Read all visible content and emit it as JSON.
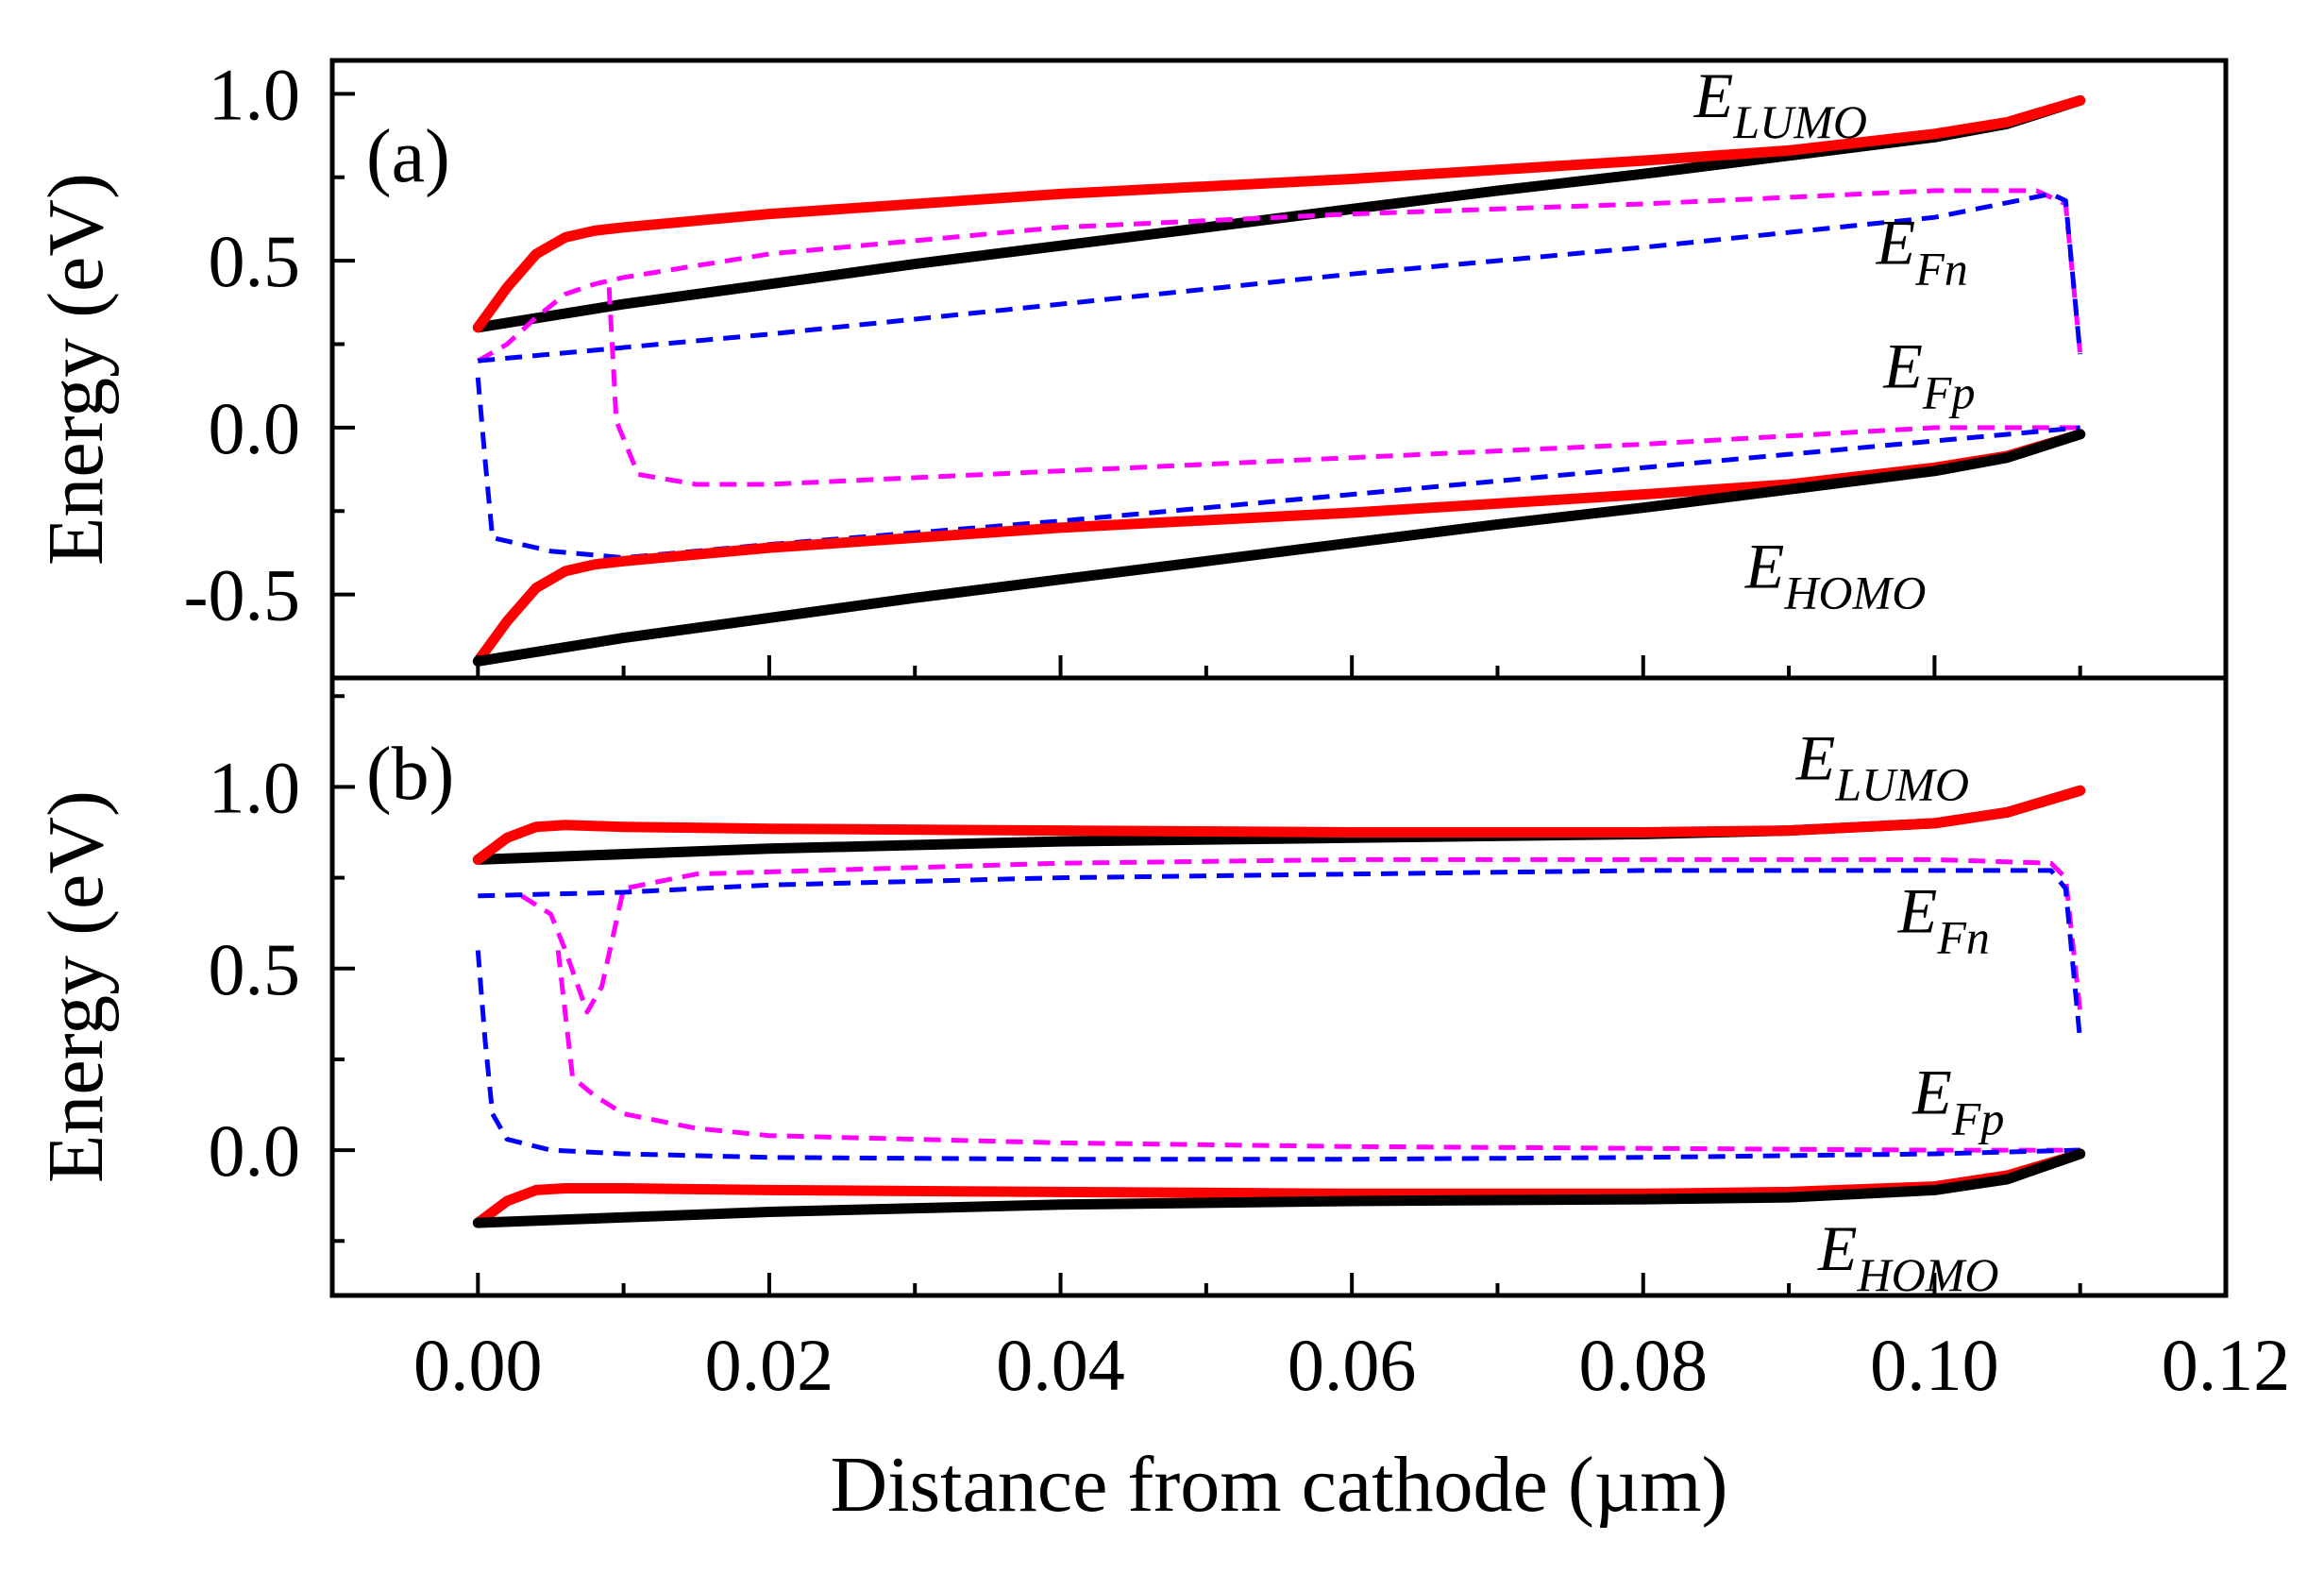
{
  "chart_data": [
    {
      "type": "line",
      "panel_label": "(a)",
      "xlabel": "Distance from cathode (µm)",
      "ylabel": "Energy (eV)",
      "xlim": [
        -0.01,
        0.12
      ],
      "ylim": [
        -0.75,
        1.1
      ],
      "xticks": [
        0.0,
        0.02,
        0.04,
        0.06,
        0.08,
        0.1,
        0.12
      ],
      "xtick_labels": [
        "0.00",
        "0.02",
        "0.04",
        "0.06",
        "0.08",
        "0.10",
        "0.12"
      ],
      "yticks": [
        -0.5,
        0.0,
        0.5,
        1.0
      ],
      "ytick_labels": [
        "-0.5",
        "0.0",
        "0.5",
        "1.0"
      ],
      "annotations": [
        {
          "main": "E",
          "sub": "LUMO",
          "x": 0.0835,
          "y": 0.93
        },
        {
          "main": "E",
          "sub": "Fn",
          "x": 0.096,
          "y": 0.49
        },
        {
          "main": "E",
          "sub": "Fp",
          "x": 0.0965,
          "y": 0.12
        },
        {
          "main": "E",
          "sub": "HOMO",
          "x": 0.087,
          "y": -0.48
        }
      ],
      "series": [
        {
          "name": "LUMO black",
          "color": "#000000",
          "width": 11,
          "dash": "",
          "x": [
            0,
            0.01,
            0.02,
            0.03,
            0.04,
            0.05,
            0.06,
            0.07,
            0.08,
            0.09,
            0.1,
            0.105,
            0.11
          ],
          "y": [
            0.3,
            0.37,
            0.43,
            0.49,
            0.545,
            0.6,
            0.655,
            0.71,
            0.76,
            0.815,
            0.87,
            0.91,
            0.98
          ]
        },
        {
          "name": "LUMO red",
          "color": "#ff0000",
          "width": 11,
          "dash": "",
          "x": [
            0,
            0.002,
            0.004,
            0.006,
            0.008,
            0.01,
            0.02,
            0.04,
            0.06,
            0.08,
            0.09,
            0.1,
            0.105,
            0.11
          ],
          "y": [
            0.3,
            0.42,
            0.52,
            0.57,
            0.59,
            0.6,
            0.64,
            0.7,
            0.745,
            0.8,
            0.83,
            0.88,
            0.915,
            0.98
          ]
        },
        {
          "name": "Fn magenta",
          "color": "#ff00ff",
          "width": 5,
          "dash": "18,11",
          "x": [
            0,
            0.002,
            0.004,
            0.006,
            0.008,
            0.01,
            0.02,
            0.04,
            0.06,
            0.08,
            0.1,
            0.107,
            0.109,
            0.11
          ],
          "y": [
            0.2,
            0.25,
            0.33,
            0.4,
            0.43,
            0.45,
            0.52,
            0.6,
            0.64,
            0.67,
            0.71,
            0.71,
            0.67,
            0.22
          ]
        },
        {
          "name": "Fn blue",
          "color": "#0000ff",
          "width": 5,
          "dash": "18,11",
          "x": [
            0,
            0.02,
            0.04,
            0.06,
            0.08,
            0.1,
            0.108,
            0.109,
            0.11
          ],
          "y": [
            0.2,
            0.28,
            0.37,
            0.46,
            0.54,
            0.63,
            0.7,
            0.68,
            0.22
          ]
        },
        {
          "name": "Fp magenta",
          "color": "#ff00ff",
          "width": 5,
          "dash": "18,11",
          "x": [
            0.009,
            0.0095,
            0.011,
            0.015,
            0.02,
            0.04,
            0.06,
            0.08,
            0.1,
            0.11
          ],
          "y": [
            0.42,
            0.02,
            -0.14,
            -0.17,
            -0.17,
            -0.13,
            -0.09,
            -0.05,
            0.0,
            0.0
          ]
        },
        {
          "name": "Fp blue",
          "color": "#0000ff",
          "width": 5,
          "dash": "18,11",
          "x": [
            0,
            0.0005,
            0.001,
            0.005,
            0.01,
            0.02,
            0.04,
            0.06,
            0.08,
            0.1,
            0.11
          ],
          "y": [
            0.15,
            -0.1,
            -0.33,
            -0.37,
            -0.39,
            -0.35,
            -0.28,
            -0.2,
            -0.12,
            -0.04,
            0.0
          ]
        },
        {
          "name": "HOMO red",
          "color": "#ff0000",
          "width": 11,
          "dash": "",
          "x": [
            0,
            0.002,
            0.004,
            0.006,
            0.008,
            0.01,
            0.02,
            0.04,
            0.06,
            0.08,
            0.09,
            0.1,
            0.105,
            0.11
          ],
          "y": [
            -0.7,
            -0.58,
            -0.48,
            -0.43,
            -0.41,
            -0.4,
            -0.36,
            -0.3,
            -0.255,
            -0.2,
            -0.17,
            -0.12,
            -0.085,
            -0.02
          ]
        },
        {
          "name": "HOMO black",
          "color": "#000000",
          "width": 11,
          "dash": "",
          "x": [
            0,
            0.01,
            0.02,
            0.03,
            0.04,
            0.05,
            0.06,
            0.07,
            0.08,
            0.09,
            0.1,
            0.105,
            0.11
          ],
          "y": [
            -0.7,
            -0.63,
            -0.57,
            -0.51,
            -0.455,
            -0.4,
            -0.345,
            -0.29,
            -0.24,
            -0.185,
            -0.13,
            -0.09,
            -0.02
          ]
        }
      ]
    },
    {
      "type": "line",
      "panel_label": "(b)",
      "xlabel": "Distance from cathode (µm)",
      "ylabel": "Energy (eV)",
      "xlim": [
        -0.01,
        0.12
      ],
      "ylim": [
        -0.4,
        1.3
      ],
      "xticks": [
        0.0,
        0.02,
        0.04,
        0.06,
        0.08,
        0.1,
        0.12
      ],
      "xtick_labels": [
        "0.00",
        "0.02",
        "0.04",
        "0.06",
        "0.08",
        "0.10",
        "0.12"
      ],
      "yticks": [
        0.0,
        0.5,
        1.0
      ],
      "ytick_labels": [
        "0.0",
        "0.5",
        "1.0"
      ],
      "annotations": [
        {
          "main": "E",
          "sub": "LUMO",
          "x": 0.0905,
          "y": 1.02
        },
        {
          "main": "E",
          "sub": "Fn",
          "x": 0.0975,
          "y": 0.6
        },
        {
          "main": "E",
          "sub": "Fp",
          "x": 0.0985,
          "y": 0.1
        },
        {
          "main": "E",
          "sub": "HOMO",
          "x": 0.092,
          "y": -0.33
        }
      ],
      "series": [
        {
          "name": "LUMO black",
          "color": "#000000",
          "width": 11,
          "dash": "",
          "x": [
            0,
            0.02,
            0.04,
            0.06,
            0.08,
            0.09,
            0.1,
            0.105,
            0.11
          ],
          "y": [
            0.8,
            0.83,
            0.85,
            0.86,
            0.87,
            0.88,
            0.9,
            0.93,
            0.99
          ]
        },
        {
          "name": "LUMO red",
          "color": "#ff0000",
          "width": 11,
          "dash": "",
          "x": [
            0,
            0.002,
            0.004,
            0.006,
            0.01,
            0.02,
            0.04,
            0.06,
            0.08,
            0.09,
            0.1,
            0.105,
            0.11
          ],
          "y": [
            0.8,
            0.86,
            0.89,
            0.895,
            0.89,
            0.885,
            0.88,
            0.875,
            0.875,
            0.88,
            0.9,
            0.93,
            0.99
          ]
        },
        {
          "name": "Fn magenta",
          "color": "#ff00ff",
          "width": 5,
          "dash": "18,11",
          "x": [
            0.003,
            0.005,
            0.006,
            0.0075,
            0.0085,
            0.01,
            0.015,
            0.04,
            0.06,
            0.08,
            0.1,
            0.108,
            0.109,
            0.11
          ],
          "y": [
            0.7,
            0.65,
            0.55,
            0.38,
            0.45,
            0.72,
            0.76,
            0.79,
            0.8,
            0.8,
            0.8,
            0.79,
            0.75,
            0.38
          ]
        },
        {
          "name": "Fn blue",
          "color": "#0000ff",
          "width": 5,
          "dash": "18,11",
          "x": [
            0,
            0.01,
            0.02,
            0.04,
            0.06,
            0.08,
            0.1,
            0.108,
            0.109,
            0.11
          ],
          "y": [
            0.7,
            0.71,
            0.73,
            0.75,
            0.76,
            0.77,
            0.77,
            0.77,
            0.72,
            0.3
          ]
        },
        {
          "name": "Fp magenta",
          "color": "#ff00ff",
          "width": 5,
          "dash": "18,11",
          "x": [
            0.0055,
            0.0065,
            0.008,
            0.01,
            0.015,
            0.02,
            0.04,
            0.06,
            0.08,
            0.1,
            0.11
          ],
          "y": [
            0.55,
            0.2,
            0.15,
            0.1,
            0.06,
            0.04,
            0.02,
            0.01,
            0.005,
            0.0,
            0.0
          ]
        },
        {
          "name": "Fp blue",
          "color": "#0000ff",
          "width": 5,
          "dash": "18,11",
          "x": [
            0,
            0.0005,
            0.001,
            0.002,
            0.005,
            0.01,
            0.02,
            0.04,
            0.06,
            0.08,
            0.1,
            0.11
          ],
          "y": [
            0.55,
            0.3,
            0.1,
            0.03,
            0.0,
            -0.01,
            -0.02,
            -0.025,
            -0.025,
            -0.02,
            -0.01,
            0.0
          ]
        },
        {
          "name": "HOMO red",
          "color": "#ff0000",
          "width": 11,
          "dash": "",
          "x": [
            0,
            0.002,
            0.004,
            0.006,
            0.01,
            0.02,
            0.04,
            0.06,
            0.08,
            0.09,
            0.1,
            0.105,
            0.11
          ],
          "y": [
            -0.2,
            -0.14,
            -0.11,
            -0.105,
            -0.105,
            -0.11,
            -0.115,
            -0.12,
            -0.12,
            -0.115,
            -0.1,
            -0.07,
            -0.01
          ]
        },
        {
          "name": "HOMO black",
          "color": "#000000",
          "width": 11,
          "dash": "",
          "x": [
            0,
            0.02,
            0.04,
            0.06,
            0.08,
            0.09,
            0.1,
            0.105,
            0.11
          ],
          "y": [
            -0.2,
            -0.17,
            -0.15,
            -0.14,
            -0.135,
            -0.13,
            -0.11,
            -0.08,
            -0.01
          ]
        }
      ]
    }
  ]
}
